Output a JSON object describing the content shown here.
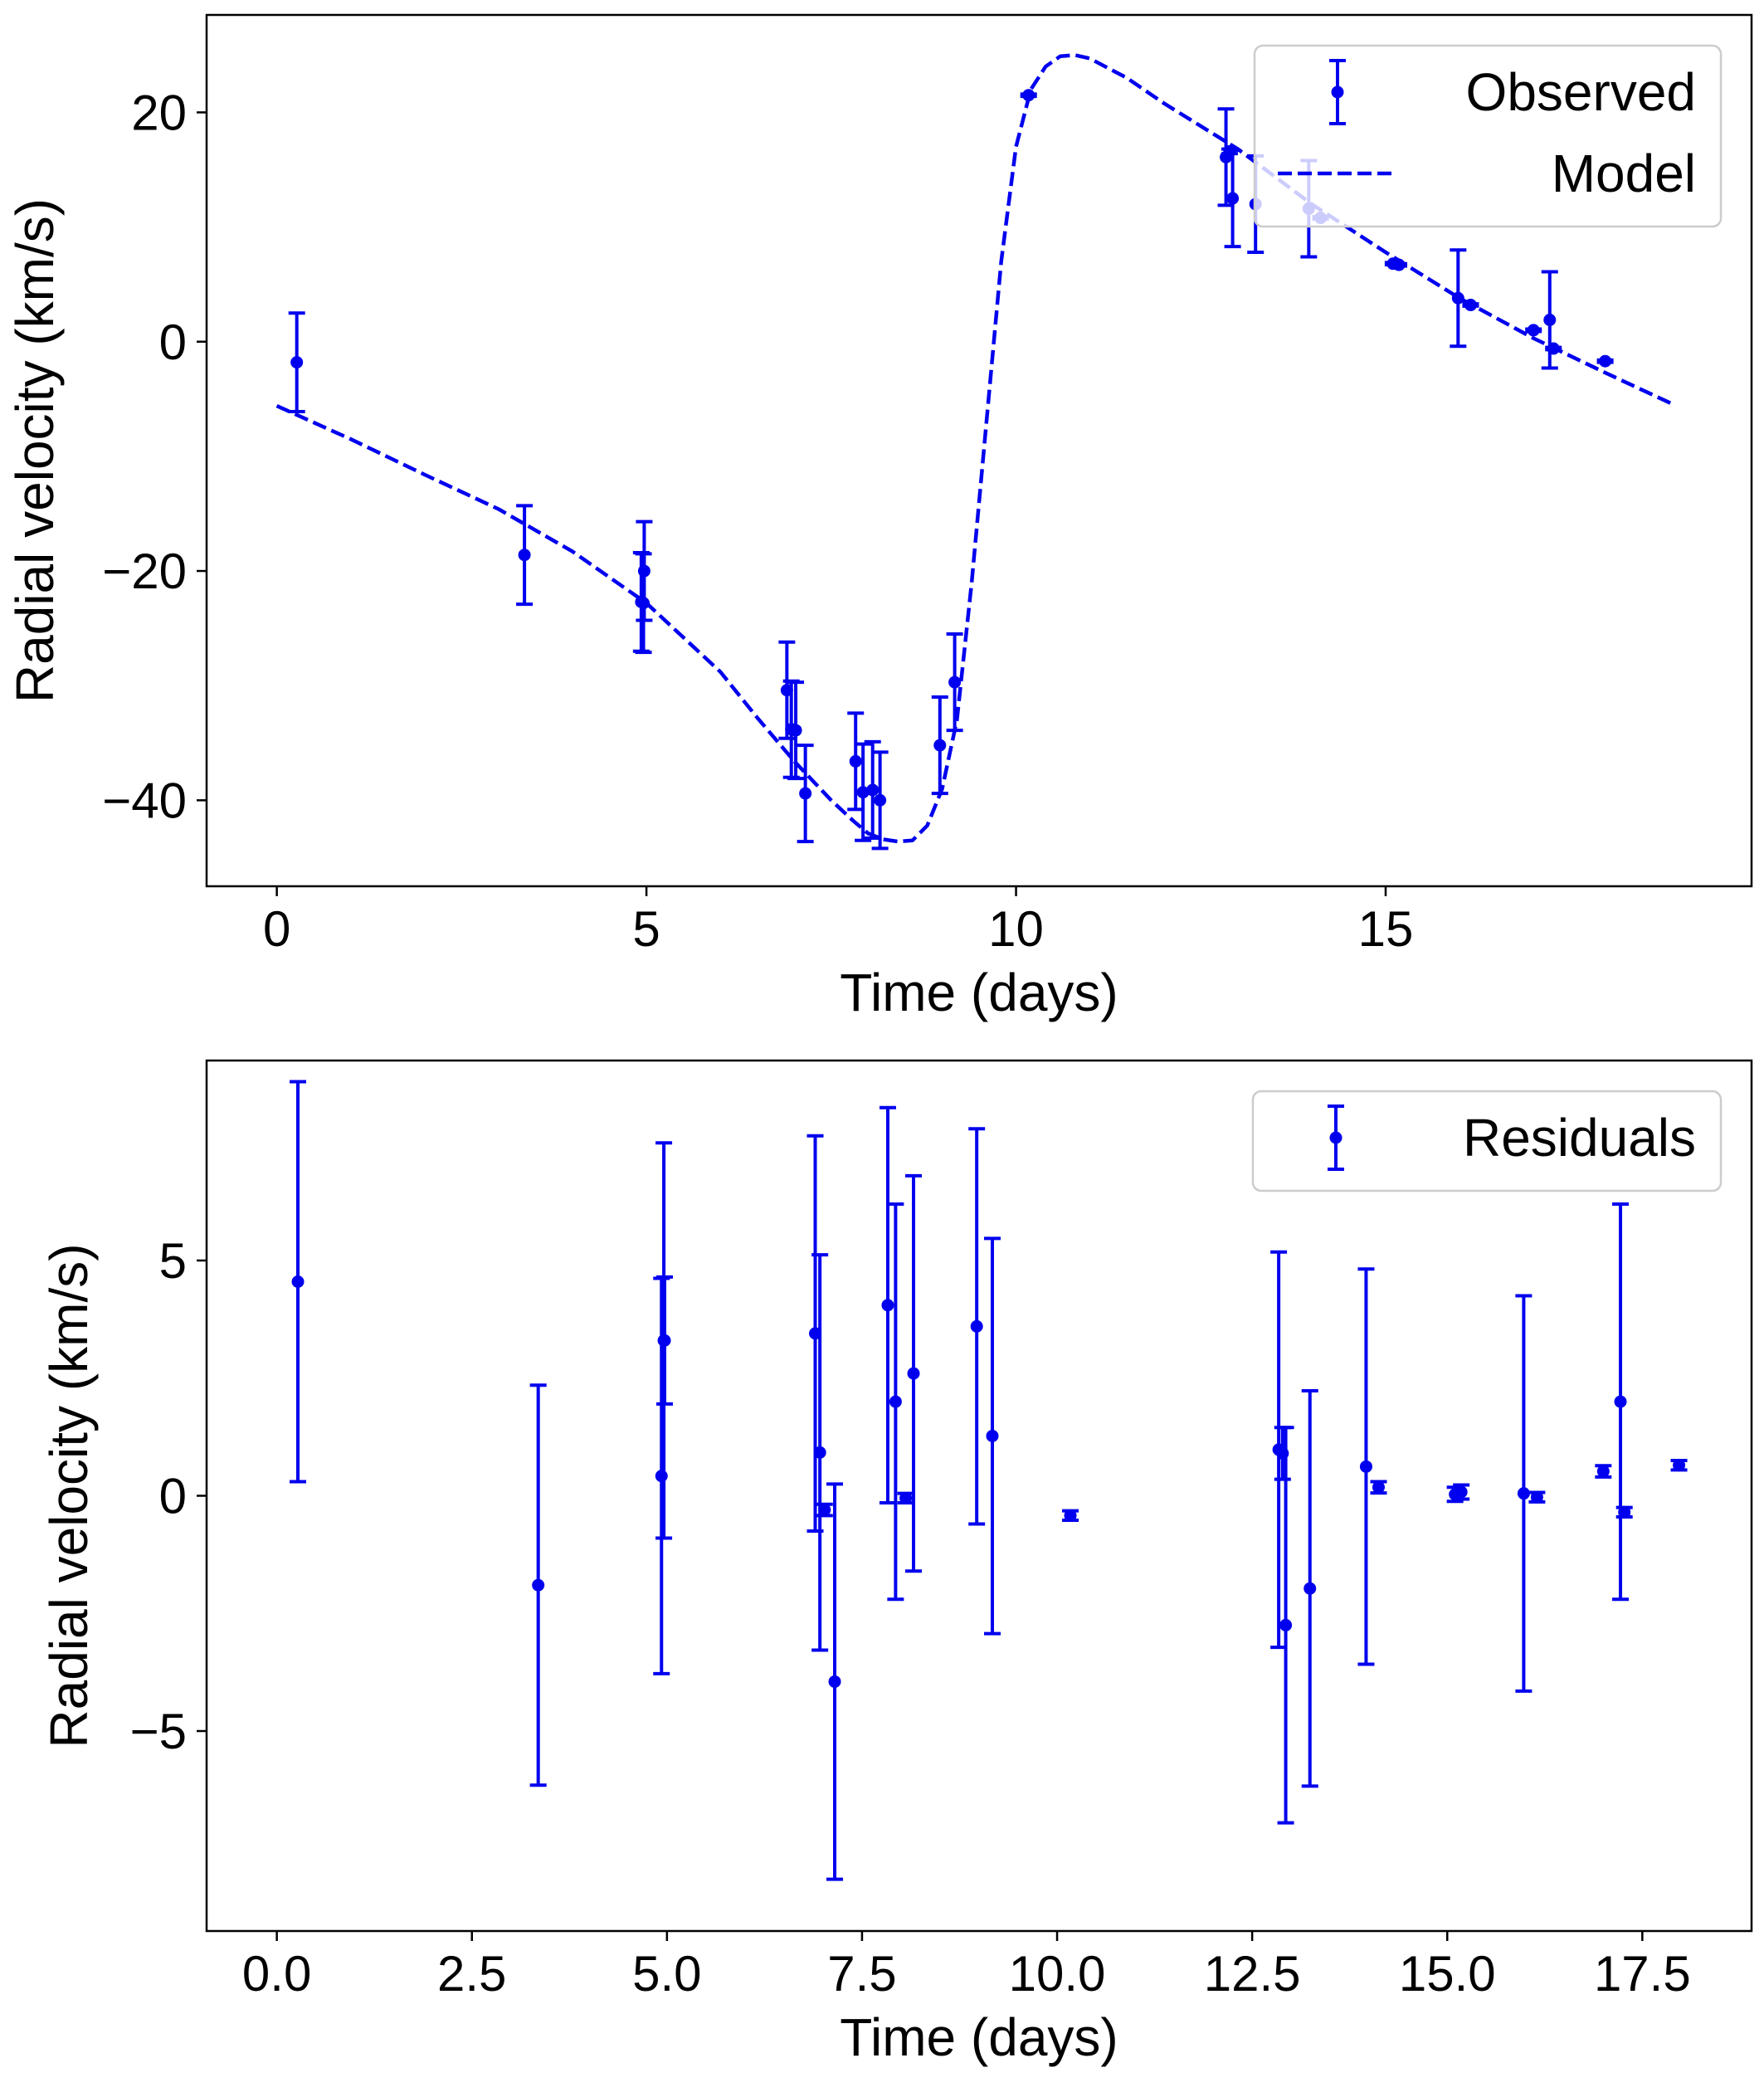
{
  "colors": {
    "series": "#0000ee",
    "axis": "#000000",
    "legend_border": "#cccccc"
  },
  "chart_data": [
    {
      "type": "errorbar+line",
      "xlabel": "Time (days)",
      "ylabel": "Radial velocity (km/s)",
      "xlim": [
        -0.95,
        19.95
      ],
      "ylim": [
        -47.5,
        28.5
      ],
      "xticks": [
        0,
        5,
        10,
        15
      ],
      "xtick_labels": [
        "0",
        "5",
        "10",
        "15"
      ],
      "yticks": [
        -40,
        -20,
        0,
        20
      ],
      "ytick_labels": [
        "−40",
        "−20",
        "0",
        "20"
      ],
      "legend": {
        "position": "top-right",
        "entries": [
          "Observed",
          "Model"
        ]
      },
      "observed": {
        "name": "Observed",
        "x": [
          0.27,
          3.35,
          4.93,
          4.96,
          4.97,
          6.9,
          6.96,
          7.02,
          7.15,
          7.83,
          7.93,
          8.06,
          8.16,
          8.97,
          9.17,
          10.17,
          12.84,
          12.89,
          12.93,
          13.24,
          13.96,
          14.12,
          15.1,
          15.18,
          15.98,
          16.15,
          17.0,
          17.22,
          17.27,
          17.97
        ],
        "y": [
          -1.8,
          -18.6,
          -22.7,
          -22.8,
          -20.0,
          -30.4,
          -33.8,
          -33.9,
          -39.4,
          -36.6,
          -39.3,
          -39.1,
          -40.0,
          -35.2,
          -29.7,
          21.5,
          16.1,
          16.6,
          12.5,
          12.0,
          11.6,
          10.8,
          6.8,
          6.7,
          3.8,
          3.2,
          1.0,
          1.9,
          -0.6,
          -1.7
        ],
        "yerr": [
          4.3,
          4.3,
          4.3,
          4.3,
          4.3,
          4.2,
          4.2,
          4.2,
          4.2,
          4.2,
          4.2,
          4.2,
          4.2,
          4.2,
          4.2,
          0.1,
          4.2,
          0.2,
          4.2,
          4.2,
          4.2,
          0.1,
          0.1,
          0.1,
          4.2,
          0.1,
          0.1,
          4.2,
          0.1,
          0.1
        ]
      },
      "model": {
        "name": "Model",
        "style": "dashed",
        "x": [
          0,
          1,
          2,
          3,
          4,
          5,
          6,
          6.5,
          7,
          7.5,
          7.8,
          8.0,
          8.2,
          8.4,
          8.6,
          8.8,
          9.0,
          9.2,
          9.4,
          9.6,
          9.8,
          10.0,
          10.2,
          10.4,
          10.6,
          10.8,
          11.0,
          11.5,
          12,
          13,
          14,
          15,
          16,
          17,
          18,
          18.9
        ],
        "y": [
          -5.6,
          -8.5,
          -11.6,
          -14.6,
          -18.3,
          -22.8,
          -28.8,
          -32.8,
          -36.6,
          -40.0,
          -41.8,
          -42.9,
          -43.4,
          -43.6,
          -43.5,
          -42.2,
          -39.0,
          -33.0,
          -21.0,
          -7.0,
          7.0,
          17.0,
          22.0,
          24.0,
          24.9,
          25.0,
          24.7,
          23.0,
          20.8,
          16.8,
          12.0,
          7.8,
          3.8,
          0.3,
          -2.8,
          -5.5
        ]
      }
    },
    {
      "type": "errorbar",
      "xlabel": "Time (days)",
      "ylabel": "Radial velocity (km/s)",
      "xlim": [
        -0.9,
        18.9
      ],
      "ylim": [
        -9.25,
        9.25
      ],
      "xticks": [
        0,
        2.5,
        5,
        7.5,
        10,
        12.5,
        15,
        17.5
      ],
      "xtick_labels": [
        "0.0",
        "2.5",
        "5.0",
        "7.5",
        "10.0",
        "12.5",
        "15.0",
        "17.5"
      ],
      "yticks": [
        -5,
        0,
        5
      ],
      "ytick_labels": [
        "−5",
        "0",
        "5"
      ],
      "legend": {
        "position": "top-right",
        "entries": [
          "Residuals"
        ]
      },
      "residuals": {
        "name": "Residuals",
        "x": [
          0.27,
          3.35,
          4.93,
          4.96,
          4.97,
          6.9,
          6.96,
          7.02,
          7.15,
          7.83,
          7.93,
          8.06,
          8.16,
          8.97,
          9.17,
          10.17,
          12.84,
          12.89,
          12.93,
          13.24,
          13.96,
          14.12,
          15.1,
          15.18,
          15.98,
          16.15,
          17.0,
          17.22,
          17.27,
          17.97
        ],
        "y": [
          4.55,
          -1.9,
          0.42,
          3.3,
          3.3,
          3.45,
          0.92,
          -0.3,
          -3.95,
          4.05,
          2.0,
          -0.05,
          2.6,
          3.6,
          1.27,
          -0.42,
          0.98,
          0.9,
          -2.75,
          -1.97,
          0.62,
          0.18,
          0.03,
          0.08,
          0.05,
          -0.03,
          0.52,
          2.0,
          -0.35,
          0.65
        ],
        "yerr": [
          4.25,
          4.25,
          4.2,
          4.2,
          1.35,
          4.2,
          4.2,
          0.12,
          4.2,
          4.2,
          4.2,
          0.1,
          4.2,
          4.2,
          4.2,
          0.1,
          4.2,
          0.55,
          4.2,
          4.2,
          4.2,
          0.12,
          0.15,
          0.15,
          4.2,
          0.1,
          0.12,
          4.2,
          0.1,
          0.1
        ]
      }
    }
  ]
}
